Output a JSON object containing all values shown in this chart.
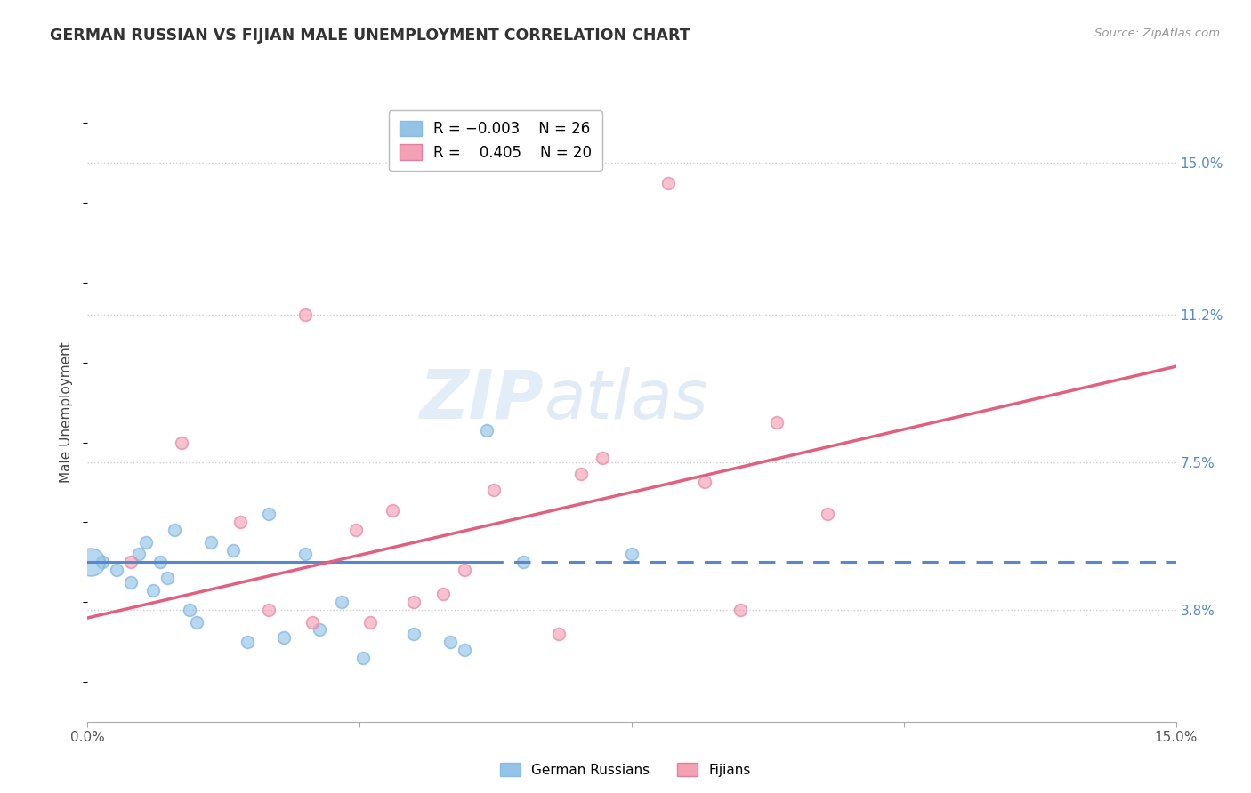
{
  "title": "GERMAN RUSSIAN VS FIJIAN MALE UNEMPLOYMENT CORRELATION CHART",
  "source": "Source: ZipAtlas.com",
  "ylabel": "Male Unemployment",
  "right_yticks": [
    3.8,
    7.5,
    11.2,
    15.0
  ],
  "right_ytick_labels": [
    "3.8%",
    "7.5%",
    "11.2%",
    "15.0%"
  ],
  "xmin": 0.0,
  "xmax": 15.0,
  "ymin": 1.0,
  "ymax": 16.5,
  "legend_blue_r": "R = -0.003",
  "legend_blue_n": "N = 26",
  "legend_pink_r": "R =  0.405",
  "legend_pink_n": "N = 20",
  "blue_color": "#93c4e8",
  "pink_color": "#f4a0b5",
  "blue_line_color": "#5588cc",
  "pink_line_color": "#e06080",
  "watermark_zip": "ZIP",
  "watermark_atlas": "atlas",
  "blue_scatter_x": [
    0.2,
    0.4,
    0.6,
    0.7,
    0.8,
    0.9,
    1.0,
    1.1,
    1.2,
    1.4,
    1.5,
    1.7,
    2.0,
    2.2,
    2.5,
    2.7,
    3.0,
    3.2,
    3.5,
    3.8,
    4.5,
    5.0,
    5.2,
    6.0,
    7.5,
    5.5
  ],
  "blue_scatter_y": [
    5.0,
    4.8,
    4.5,
    5.2,
    5.5,
    4.3,
    5.0,
    4.6,
    5.8,
    3.8,
    3.5,
    5.5,
    5.3,
    3.0,
    6.2,
    3.1,
    5.2,
    3.3,
    4.0,
    2.6,
    3.2,
    3.0,
    2.8,
    5.0,
    5.2,
    8.3
  ],
  "pink_scatter_x": [
    0.6,
    1.3,
    2.1,
    2.5,
    3.1,
    3.7,
    3.9,
    4.2,
    4.9,
    5.6,
    6.8,
    7.1,
    8.5,
    9.5,
    10.2,
    3.0,
    4.5,
    5.2,
    6.5,
    9.0
  ],
  "pink_scatter_y": [
    5.0,
    8.0,
    6.0,
    3.8,
    3.5,
    5.8,
    3.5,
    6.3,
    4.2,
    6.8,
    7.2,
    7.6,
    7.0,
    8.5,
    6.2,
    11.2,
    4.0,
    4.8,
    3.2,
    3.8
  ],
  "pink_outlier_x": 8.0,
  "pink_outlier_y": 14.5,
  "blue_dot_size": 100,
  "pink_dot_size": 100,
  "big_blue_dot_x": 0.05,
  "big_blue_dot_y": 5.0,
  "big_blue_dot_size": 500,
  "blue_line_y_intercept": 5.0,
  "blue_line_slope": 0.0,
  "pink_line_y_intercept": 3.6,
  "pink_line_slope": 0.42,
  "blue_solid_end_x": 5.5,
  "grid_color": "#cccccc",
  "grid_style": "dotted",
  "background_color": "#ffffff"
}
